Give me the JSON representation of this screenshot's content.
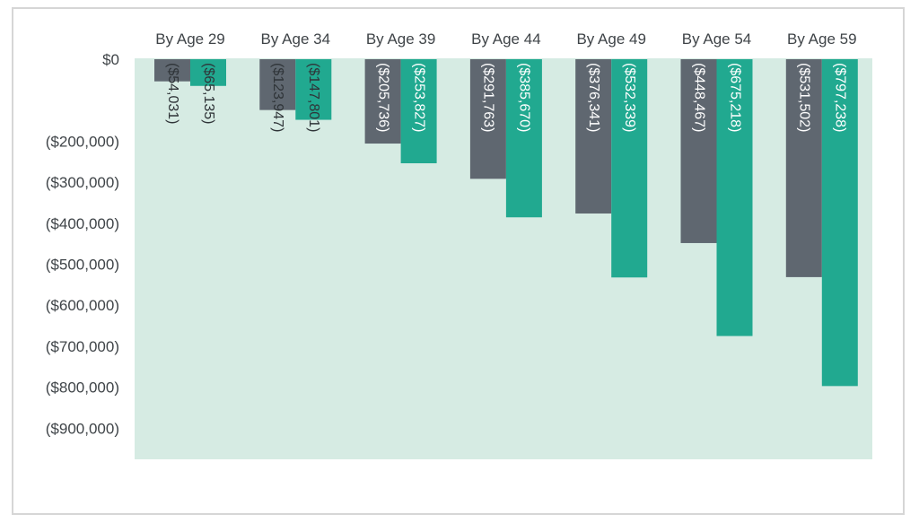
{
  "chart_data": {
    "type": "bar",
    "categories": [
      "By Age 29",
      "By Age 34",
      "By Age 39",
      "By Age 44",
      "By Age 49",
      "By Age 54",
      "By Age 59"
    ],
    "series": [
      {
        "values": [
          -54031,
          -123947,
          -205736,
          -291763,
          -376341,
          -448467,
          -531502
        ],
        "labels": [
          "($54,031)",
          "($123,947)",
          "($205,736)",
          "($291,763)",
          "($376,341)",
          "($448,467)",
          "($531,502)"
        ]
      },
      {
        "values": [
          -65135,
          -147801,
          -253827,
          -385670,
          -532339,
          -675218,
          -797238
        ],
        "labels": [
          "($65,135)",
          "($147,801)",
          "($253,827)",
          "($385,670)",
          "($532,339)",
          "($675,218)",
          "($797,238)"
        ]
      }
    ],
    "ytick_values": [
      0,
      -200000,
      -300000,
      -400000,
      -500000,
      -600000,
      -700000,
      -800000,
      -900000
    ],
    "yticks": [
      "$0",
      "($200,000)",
      "($300,000)",
      "($400,000)",
      "($500,000)",
      "($600,000)",
      "($700,000)",
      "($800,000)",
      "($900,000)"
    ],
    "ylim": [
      -980000,
      0
    ],
    "category_position": "top",
    "grid": false,
    "legend": "none",
    "colors": {
      "series_1": "#5f6770",
      "series_2": "#21a990",
      "plot_background": "#d6ebe3",
      "text": "#3f4448"
    }
  }
}
